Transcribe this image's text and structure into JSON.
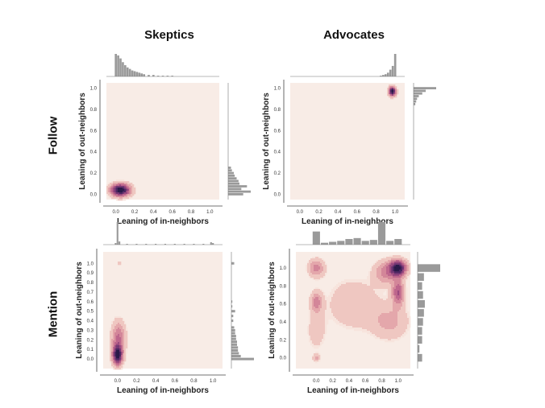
{
  "columns": [
    "Skeptics",
    "Advocates"
  ],
  "rows": [
    "Follow",
    "Mention"
  ],
  "chart_data": [
    {
      "type": "heatmap",
      "id": "follow-skeptics",
      "column": "Skeptics",
      "row": "Follow",
      "xlabel": "Leaning of in-neighbors",
      "ylabel": "Leaning of out-neighbors",
      "xticks": [
        "0.0",
        "0.2",
        "0.4",
        "0.6",
        "0.8",
        "1.0"
      ],
      "yticks": [
        "0.0",
        "0.2",
        "0.4",
        "0.6",
        "0.8",
        "1.0"
      ],
      "xlim": [
        -0.1,
        1.1
      ],
      "ylim": [
        -0.05,
        1.05
      ],
      "kde_modes": [
        {
          "x": 0.05,
          "y": 0.04,
          "sx": 0.07,
          "sy": 0.04,
          "w": 1.0
        }
      ],
      "top_hist": {
        "x": [
          0.0,
          0.025,
          0.05,
          0.075,
          0.1,
          0.125,
          0.15,
          0.175,
          0.2,
          0.225,
          0.25,
          0.275,
          0.3,
          0.35,
          0.4,
          0.45,
          0.5,
          0.55,
          0.6
        ],
        "counts": [
          30,
          28,
          24,
          19,
          15,
          12,
          10,
          8,
          7,
          6,
          5,
          4,
          3,
          2,
          2,
          1,
          1,
          1,
          1
        ]
      },
      "right_hist": {
        "y": [
          0.0,
          0.025,
          0.05,
          0.075,
          0.1,
          0.125,
          0.15,
          0.175,
          0.2,
          0.225,
          0.25
        ],
        "counts": [
          16,
          24,
          14,
          20,
          12,
          11,
          9,
          7,
          6,
          4,
          3
        ]
      }
    },
    {
      "type": "heatmap",
      "id": "follow-advocates",
      "column": "Advocates",
      "row": "Follow",
      "xlabel": "Leaning of in-neighbors",
      "ylabel": "Leaning of out-neighbors",
      "xticks": [
        "0.0",
        "0.2",
        "0.4",
        "0.6",
        "0.8",
        "1.0"
      ],
      "yticks": [
        "0.0",
        "0.2",
        "0.4",
        "0.6",
        "0.8",
        "1.0"
      ],
      "xlim": [
        -0.1,
        1.1
      ],
      "ylim": [
        -0.05,
        1.05
      ],
      "kde_modes": [
        {
          "x": 0.97,
          "y": 0.97,
          "sx": 0.025,
          "sy": 0.03,
          "w": 1.0
        }
      ],
      "top_hist": {
        "x": [
          0.85,
          0.875,
          0.9,
          0.925,
          0.95,
          0.975,
          1.0
        ],
        "counts": [
          1,
          2,
          3,
          5,
          9,
          14,
          30
        ]
      },
      "right_hist": {
        "y": [
          0.85,
          0.875,
          0.9,
          0.925,
          0.95,
          0.975,
          1.0
        ],
        "counts": [
          2,
          3,
          4,
          6,
          10,
          14,
          26
        ]
      }
    },
    {
      "type": "heatmap",
      "id": "mention-skeptics",
      "column": "Skeptics",
      "row": "Mention",
      "xlabel": "Leaning of in-neighbors",
      "ylabel": "Leaning of out-neighbors",
      "xticks": [
        "0.0",
        "0.2",
        "0.4",
        "0.6",
        "0.8",
        "1.0"
      ],
      "yticks": [
        "0.0",
        "0.1",
        "0.2",
        "0.3",
        "0.4",
        "0.5",
        "0.6",
        "0.7",
        "0.8",
        "0.9",
        "1.0"
      ],
      "xlim": [
        -0.15,
        1.1
      ],
      "ylim": [
        -0.1,
        1.12
      ],
      "kde_modes": [
        {
          "x": 0.0,
          "y": 0.04,
          "sx": 0.035,
          "sy": 0.07,
          "w": 1.0
        },
        {
          "x": 0.01,
          "y": 0.22,
          "sx": 0.05,
          "sy": 0.12,
          "w": 0.45
        },
        {
          "x": 0.02,
          "y": 1.0,
          "sx": 0.02,
          "sy": 0.02,
          "w": 0.12
        }
      ],
      "top_hist": {
        "x": [
          -0.02,
          0.0,
          0.02,
          0.1,
          0.2,
          0.3,
          0.4,
          0.5,
          0.6,
          0.7,
          0.8,
          0.9,
          0.98,
          1.0
        ],
        "counts": [
          2,
          28,
          4,
          1,
          1,
          1,
          1,
          1,
          1,
          1,
          1,
          1,
          3,
          2
        ]
      },
      "right_hist": {
        "y": [
          0.0,
          0.03,
          0.06,
          0.09,
          0.12,
          0.15,
          0.18,
          0.21,
          0.24,
          0.27,
          0.3,
          0.33,
          0.4,
          0.45,
          0.5,
          0.55,
          0.6,
          1.0
        ],
        "counts": [
          24,
          10,
          8,
          7,
          7,
          6,
          6,
          5,
          5,
          4,
          4,
          3,
          2,
          2,
          4,
          1,
          1,
          3
        ]
      }
    },
    {
      "type": "heatmap",
      "id": "mention-advocates",
      "column": "Advocates",
      "row": "Mention",
      "xlabel": "Leaning of in-neighbors",
      "ylabel": "Leaning of out-neighbors",
      "xticks": [
        "0.0",
        "0.2",
        "0.4",
        "0.6",
        "0.8",
        "1.0"
      ],
      "yticks": [
        "0.0",
        "0.2",
        "0.4",
        "0.6",
        "0.8",
        "1.0"
      ],
      "xlim": [
        -0.25,
        1.15
      ],
      "ylim": [
        -0.12,
        1.18
      ],
      "kde_modes": [
        {
          "x": 1.0,
          "y": 1.0,
          "sx": 0.07,
          "sy": 0.06,
          "w": 1.0
        },
        {
          "x": 1.0,
          "y": 0.73,
          "sx": 0.05,
          "sy": 0.1,
          "w": 0.55
        },
        {
          "x": 0.85,
          "y": 0.95,
          "sx": 0.1,
          "sy": 0.09,
          "w": 0.35
        },
        {
          "x": 0.0,
          "y": 1.0,
          "sx": 0.07,
          "sy": 0.07,
          "w": 0.35
        },
        {
          "x": 0.0,
          "y": 0.62,
          "sx": 0.05,
          "sy": 0.08,
          "w": 0.35
        },
        {
          "x": 0.45,
          "y": 0.6,
          "sx": 0.22,
          "sy": 0.2,
          "w": 0.18
        },
        {
          "x": 0.9,
          "y": 0.4,
          "sx": 0.16,
          "sy": 0.14,
          "w": 0.22
        },
        {
          "x": 0.0,
          "y": 0.0,
          "sx": 0.03,
          "sy": 0.03,
          "w": 0.22
        },
        {
          "x": 0.0,
          "y": 0.3,
          "sx": 0.08,
          "sy": 0.15,
          "w": 0.15
        }
      ],
      "top_hist": {
        "x": [
          0.0,
          0.1,
          0.2,
          0.3,
          0.4,
          0.5,
          0.6,
          0.7,
          0.8,
          0.9,
          1.0
        ],
        "counts": [
          14,
          2,
          3,
          4,
          6,
          7,
          4,
          5,
          24,
          4,
          6
        ]
      },
      "right_hist": {
        "y": [
          0.0,
          0.1,
          0.2,
          0.3,
          0.4,
          0.5,
          0.6,
          0.7,
          0.8,
          0.9,
          1.0
        ],
        "counts": [
          5,
          2,
          5,
          5,
          6,
          7,
          8,
          6,
          5,
          7,
          25
        ]
      }
    }
  ]
}
